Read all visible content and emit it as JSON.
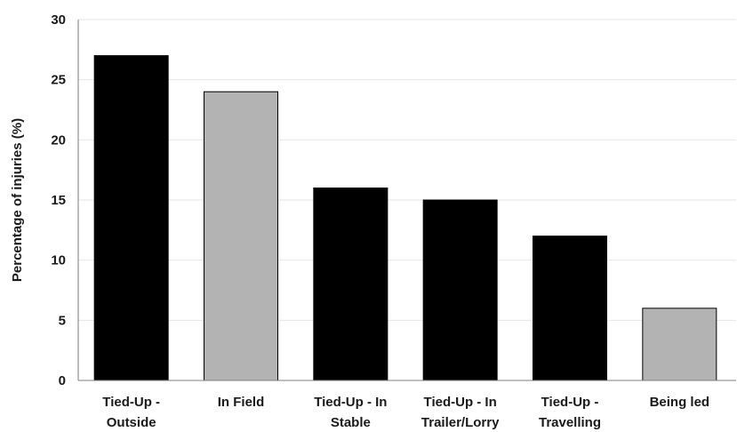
{
  "chart_data": {
    "type": "bar",
    "categories": [
      [
        "Tied-Up -",
        "Outside"
      ],
      [
        "In Field"
      ],
      [
        "Tied-Up - In",
        "Stable"
      ],
      [
        "Tied-Up - In",
        "Trailer/Lorry"
      ],
      [
        "Tied-Up -",
        "Travelling"
      ],
      [
        "Being led"
      ]
    ],
    "values": [
      27,
      24,
      16,
      15,
      12,
      6
    ],
    "bar_colors": [
      "#000000",
      "#b3b3b3",
      "#000000",
      "#000000",
      "#000000",
      "#b3b3b3"
    ],
    "title": "",
    "xlabel": "",
    "ylabel": "Percentage of injuries (%)",
    "ylim": [
      0,
      30
    ],
    "yticks": [
      0,
      5,
      10,
      15,
      20,
      25,
      30
    ],
    "grid": true,
    "gridline_color": "#e6e6e6",
    "legend": "none"
  }
}
